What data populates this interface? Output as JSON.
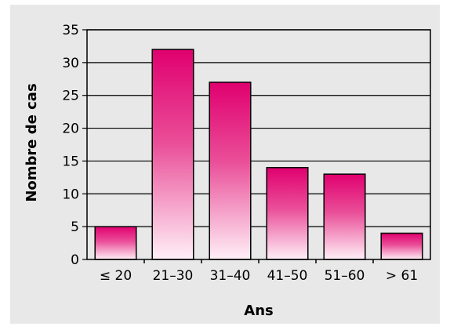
{
  "chart_data": {
    "type": "bar",
    "categories": [
      "≤ 20",
      "21–30",
      "31–40",
      "41–50",
      "51–60",
      "> 61"
    ],
    "values": [
      5,
      32,
      27,
      14,
      13,
      4
    ],
    "title": "",
    "xlabel": "Ans",
    "ylabel": "Nombre de cas",
    "ylim": [
      0,
      35
    ],
    "yticks": [
      0,
      5,
      10,
      15,
      20,
      25,
      30,
      35
    ],
    "grid": true,
    "colors": {
      "bar_top": "#e0006f",
      "bar_bottom": "#fff0f7",
      "background": "#e8e8e8",
      "grid": "#000000"
    }
  }
}
